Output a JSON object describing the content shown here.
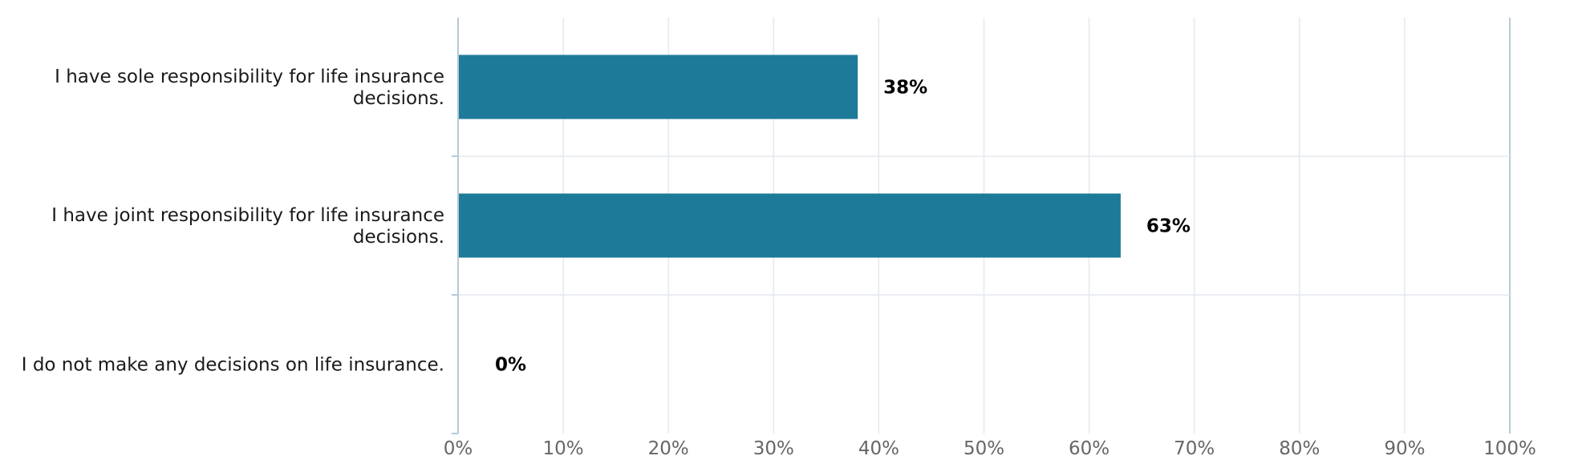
{
  "chart_data": {
    "type": "bar",
    "orientation": "horizontal",
    "categories": [
      [
        "I have sole responsibility for life insurance",
        "decisions."
      ],
      [
        "I have joint responsibility for life insurance",
        "decisions."
      ],
      [
        "I do not make any decisions on life insurance."
      ]
    ],
    "values": [
      38,
      63,
      0
    ],
    "value_labels": [
      "38%",
      "63%",
      "0%"
    ],
    "xlim": [
      0,
      100
    ],
    "x_ticks": [
      "0%",
      "10%",
      "20%",
      "30%",
      "40%",
      "50%",
      "60%",
      "70%",
      "80%",
      "90%",
      "100%"
    ],
    "grid": true,
    "legend": "none",
    "title": "",
    "xlabel": "",
    "ylabel": "",
    "colors": {
      "bar": "#1e7a99",
      "grid": "#e3e9ee",
      "axis": "#b7c9d6",
      "tick_text": "#666666",
      "category_text": "#1a1a1a",
      "value_text": "#000000"
    }
  }
}
